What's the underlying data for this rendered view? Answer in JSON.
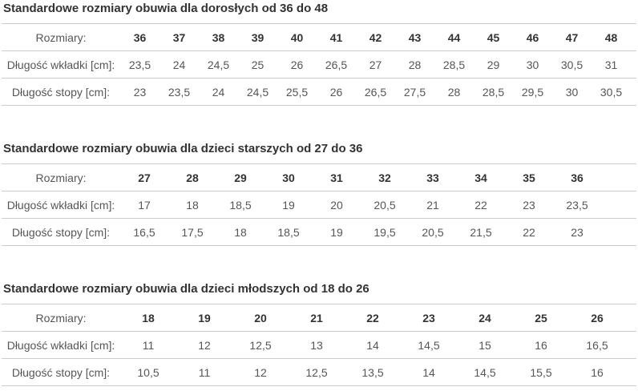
{
  "colors": {
    "border": "#cccccc",
    "title_text": "#333333",
    "label_text": "#4a4a4a",
    "value_text": "#565656",
    "background": "#ffffff"
  },
  "tables": [
    {
      "title": "Standardowe rozmiary obuwia dla dorosłych od 36 do 48",
      "rows": [
        {
          "label": "Rozmiary:",
          "header": true,
          "values": [
            "36",
            "37",
            "38",
            "39",
            "40",
            "41",
            "42",
            "43",
            "44",
            "45",
            "46",
            "47",
            "48"
          ]
        },
        {
          "label": "Długość wkładki [cm]:",
          "header": false,
          "values": [
            "23,5",
            "24",
            "24,5",
            "25",
            "26",
            "26,5",
            "27",
            "28",
            "28,5",
            "29",
            "30",
            "30,5",
            "31"
          ]
        },
        {
          "label": "Długość stopy [cm]:",
          "header": false,
          "values": [
            "23",
            "23,5",
            "24",
            "24,5",
            "25,5",
            "26",
            "26,5",
            "27,5",
            "28",
            "28,5",
            "29,5",
            "30",
            "30,5"
          ]
        }
      ]
    },
    {
      "title": "Standardowe rozmiary obuwia dla dzieci starszych od 27 do 36",
      "rows": [
        {
          "label": "Rozmiary:",
          "header": true,
          "values": [
            "27",
            "28",
            "29",
            "30",
            "31",
            "32",
            "33",
            "34",
            "35",
            "36"
          ]
        },
        {
          "label": "Długość wkładki [cm]:",
          "header": false,
          "values": [
            "17",
            "18",
            "18,5",
            "19",
            "20",
            "20,5",
            "21",
            "22",
            "23",
            "23,5"
          ]
        },
        {
          "label": "Długość stopy [cm]:",
          "header": false,
          "values": [
            "16,5",
            "17,5",
            "18",
            "18,5",
            "19",
            "19,5",
            "20,5",
            "21,5",
            "22",
            "23"
          ]
        }
      ]
    },
    {
      "title": "Standardowe rozmiary obuwia dla dzieci młodszych od 18 do 26",
      "rows": [
        {
          "label": "Rozmiary:",
          "header": true,
          "values": [
            "18",
            "19",
            "20",
            "21",
            "22",
            "23",
            "24",
            "25",
            "26"
          ]
        },
        {
          "label": "Długość wkładki [cm]:",
          "header": false,
          "values": [
            "11",
            "12",
            "12,5",
            "13",
            "14",
            "14,5",
            "15",
            "16",
            "16,5"
          ]
        },
        {
          "label": "Długość stopy [cm]:",
          "header": false,
          "values": [
            "10,5",
            "11",
            "12",
            "12,5",
            "13,5",
            "14",
            "14,5",
            "15,5",
            "16"
          ]
        }
      ]
    }
  ]
}
